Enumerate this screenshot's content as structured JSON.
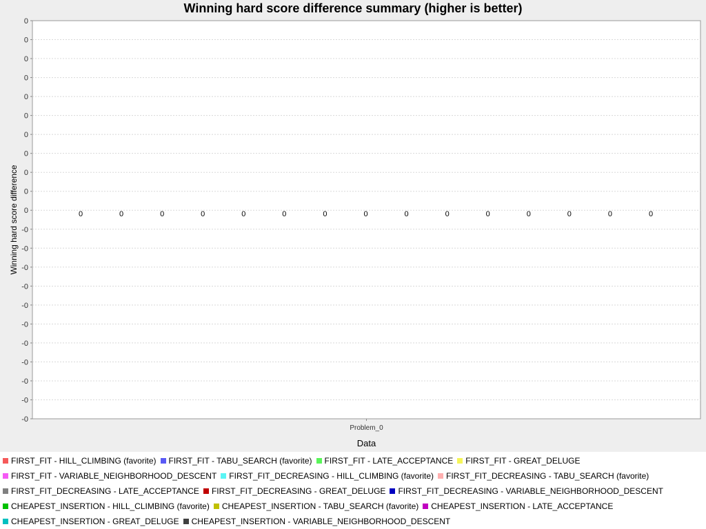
{
  "chart_data": {
    "type": "bar",
    "title": "Winning hard score difference summary (higher is better)",
    "xlabel": "Data",
    "ylabel": "Winning hard score difference",
    "categories": [
      "Problem_0"
    ],
    "y_tick_labels": [
      "0",
      "0",
      "0",
      "0",
      "0",
      "0",
      "0",
      "0",
      "0",
      "0",
      "0",
      "-0",
      "-0",
      "-0",
      "-0",
      "-0",
      "-0",
      "-0",
      "-0",
      "-0",
      "-0",
      "-0"
    ],
    "grid": true,
    "legend_position": "bottom",
    "series": [
      {
        "name": "FIRST_FIT - HILL_CLIMBING (favorite)",
        "color": "#f55a5a",
        "values": [
          0
        ]
      },
      {
        "name": "FIRST_FIT - TABU_SEARCH (favorite)",
        "color": "#5a5af5",
        "values": [
          0
        ]
      },
      {
        "name": "FIRST_FIT - LATE_ACCEPTANCE",
        "color": "#5af55a",
        "values": [
          0
        ]
      },
      {
        "name": "FIRST_FIT - GREAT_DELUGE",
        "color": "#f5f55a",
        "values": [
          0
        ]
      },
      {
        "name": "FIRST_FIT - VARIABLE_NEIGHBORHOOD_DESCENT",
        "color": "#f55af5",
        "values": [
          0
        ]
      },
      {
        "name": "FIRST_FIT_DECREASING - HILL_CLIMBING (favorite)",
        "color": "#5af5f5",
        "values": [
          0
        ]
      },
      {
        "name": "FIRST_FIT_DECREASING - TABU_SEARCH (favorite)",
        "color": "#ffafaf",
        "values": [
          0
        ]
      },
      {
        "name": "FIRST_FIT_DECREASING - LATE_ACCEPTANCE",
        "color": "#808080",
        "values": [
          0
        ]
      },
      {
        "name": "FIRST_FIT_DECREASING - GREAT_DELUGE",
        "color": "#c00000",
        "values": [
          0
        ]
      },
      {
        "name": "FIRST_FIT_DECREASING - VARIABLE_NEIGHBORHOOD_DESCENT",
        "color": "#0000c0",
        "values": [
          0
        ]
      },
      {
        "name": "CHEAPEST_INSERTION - HILL_CLIMBING (favorite)",
        "color": "#00c000",
        "values": [
          0
        ]
      },
      {
        "name": "CHEAPEST_INSERTION - TABU_SEARCH (favorite)",
        "color": "#c0c000",
        "values": [
          0
        ]
      },
      {
        "name": "CHEAPEST_INSERTION - LATE_ACCEPTANCE",
        "color": "#c000c0",
        "values": [
          0
        ]
      },
      {
        "name": "CHEAPEST_INSERTION - GREAT_DELUGE",
        "color": "#00c0c0",
        "values": [
          0
        ]
      },
      {
        "name": "CHEAPEST_INSERTION - VARIABLE_NEIGHBORHOOD_DESCENT",
        "color": "#404040",
        "values": [
          0
        ]
      }
    ],
    "data_labels": [
      "0",
      "0",
      "0",
      "0",
      "0",
      "0",
      "0",
      "0",
      "0",
      "0",
      "0",
      "0",
      "0",
      "0",
      "0"
    ]
  }
}
